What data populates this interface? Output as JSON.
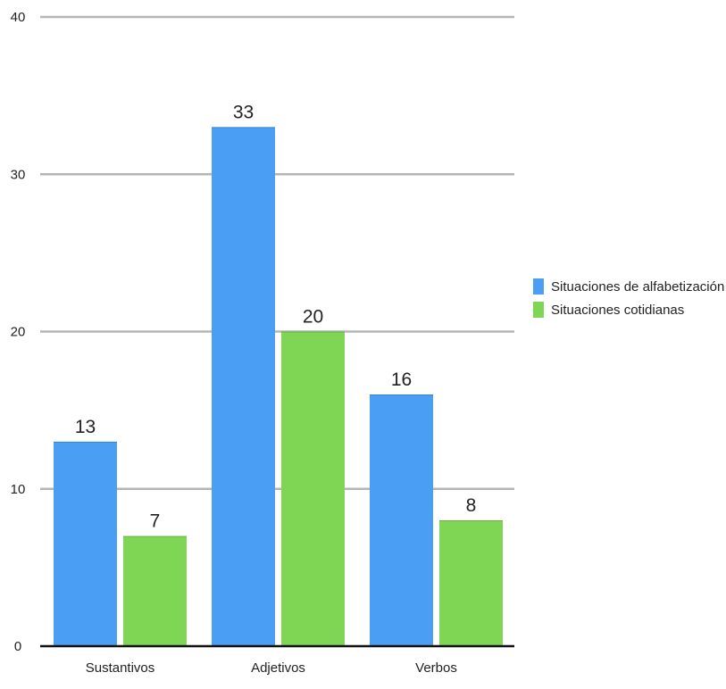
{
  "chart_data": {
    "type": "bar",
    "title": "",
    "xlabel": "",
    "ylabel": "",
    "categories": [
      "Sustantivos",
      "Adjetivos",
      "Verbos"
    ],
    "series": [
      {
        "name": "Situaciones de alfabetización",
        "values": [
          13,
          33,
          16
        ],
        "color": "#4a9ff5"
      },
      {
        "name": "Situaciones cotidianas",
        "values": [
          7,
          20,
          8
        ],
        "color": "#7fd655"
      }
    ],
    "ylim": [
      0,
      40
    ],
    "yticks": [
      0,
      10,
      20,
      30,
      40
    ],
    "grid": true,
    "legend": "right",
    "gridline_color": "#b5b5b5",
    "axis_color": "#111111"
  }
}
